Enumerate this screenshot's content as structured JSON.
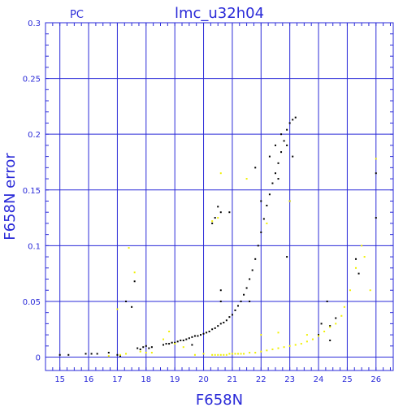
{
  "chart_data": {
    "type": "scatter",
    "title": "lmc_u32h04",
    "camera_label": "PC",
    "xlabel": "F658N",
    "ylabel": "F658N error",
    "xlim": [
      14.5,
      26.6
    ],
    "ylim": [
      -0.012,
      0.3
    ],
    "grid": true,
    "x_ticks": [
      15,
      16,
      17,
      18,
      19,
      20,
      21,
      22,
      23,
      24,
      25,
      26
    ],
    "y_ticks": [
      0,
      0.05,
      0.1,
      0.15,
      0.2,
      0.25,
      0.3
    ],
    "y_tick_labels": [
      "0",
      "0.05",
      "0.1",
      "0.15",
      "0.2",
      "0.25",
      "0.3"
    ],
    "colors": {
      "axis": "#2a2ad8",
      "grid": "#2a2ad8",
      "primary": "#000000",
      "secondary": "#f0f000"
    },
    "series": [
      {
        "color": "#000000",
        "points": [
          [
            15.0,
            0.002
          ],
          [
            15.3,
            0.002
          ],
          [
            15.9,
            0.003
          ],
          [
            16.1,
            0.003
          ],
          [
            16.3,
            0.003
          ],
          [
            16.7,
            0.004
          ],
          [
            17.0,
            0.002
          ],
          [
            17.1,
            0.001
          ],
          [
            17.3,
            0.05
          ],
          [
            17.5,
            0.045
          ],
          [
            17.6,
            0.068
          ],
          [
            17.7,
            0.008
          ],
          [
            17.8,
            0.007
          ],
          [
            17.9,
            0.009
          ],
          [
            18.0,
            0.01
          ],
          [
            18.1,
            0.008
          ],
          [
            18.2,
            0.009
          ],
          [
            18.6,
            0.011
          ],
          [
            18.7,
            0.012
          ],
          [
            18.8,
            0.012
          ],
          [
            18.9,
            0.013
          ],
          [
            19.0,
            0.013
          ],
          [
            19.1,
            0.014
          ],
          [
            19.2,
            0.015
          ],
          [
            19.3,
            0.015
          ],
          [
            19.4,
            0.016
          ],
          [
            19.5,
            0.017
          ],
          [
            19.6,
            0.018
          ],
          [
            19.7,
            0.019
          ],
          [
            19.8,
            0.019
          ],
          [
            19.9,
            0.02
          ],
          [
            20.0,
            0.021
          ],
          [
            20.1,
            0.022
          ],
          [
            20.2,
            0.023
          ],
          [
            20.3,
            0.025
          ],
          [
            20.4,
            0.026
          ],
          [
            20.5,
            0.028
          ],
          [
            20.6,
            0.03
          ],
          [
            20.7,
            0.031
          ],
          [
            20.8,
            0.033
          ],
          [
            20.9,
            0.036
          ],
          [
            21.0,
            0.038
          ],
          [
            21.1,
            0.042
          ],
          [
            21.2,
            0.046
          ],
          [
            21.3,
            0.05
          ],
          [
            21.4,
            0.056
          ],
          [
            21.5,
            0.062
          ],
          [
            21.6,
            0.07
          ],
          [
            21.7,
            0.078
          ],
          [
            21.8,
            0.088
          ],
          [
            21.9,
            0.1
          ],
          [
            22.0,
            0.112
          ],
          [
            22.1,
            0.124
          ],
          [
            22.2,
            0.136
          ],
          [
            22.3,
            0.146
          ],
          [
            22.4,
            0.156
          ],
          [
            22.5,
            0.165
          ],
          [
            22.6,
            0.174
          ],
          [
            22.7,
            0.184
          ],
          [
            22.8,
            0.194
          ],
          [
            22.9,
            0.204
          ],
          [
            23.0,
            0.21
          ],
          [
            23.1,
            0.213
          ],
          [
            23.2,
            0.215
          ],
          [
            20.4,
            0.125
          ],
          [
            20.5,
            0.135
          ],
          [
            20.6,
            0.13
          ],
          [
            20.3,
            0.12
          ],
          [
            20.6,
            0.05
          ],
          [
            20.9,
            0.13
          ],
          [
            21.8,
            0.17
          ],
          [
            22.0,
            0.14
          ],
          [
            22.3,
            0.18
          ],
          [
            22.5,
            0.19
          ],
          [
            22.6,
            0.16
          ],
          [
            22.7,
            0.2
          ],
          [
            23.0,
            0.14
          ],
          [
            22.9,
            0.09
          ],
          [
            23.1,
            0.18
          ],
          [
            22.9,
            0.19
          ],
          [
            24.3,
            0.05
          ],
          [
            24.4,
            0.028
          ],
          [
            24.6,
            0.035
          ],
          [
            25.3,
            0.088
          ],
          [
            25.4,
            0.075
          ],
          [
            26.0,
            0.165
          ],
          [
            26.0,
            0.125
          ],
          [
            24.0,
            0.02
          ],
          [
            24.1,
            0.03
          ],
          [
            24.4,
            0.015
          ],
          [
            20.6,
            0.06
          ],
          [
            21.6,
            0.05
          ],
          [
            19.6,
            0.011
          ]
        ]
      },
      {
        "color": "#f0f000",
        "points": [
          [
            16.7,
            0.001
          ],
          [
            17.0,
            0.043
          ],
          [
            17.1,
            0.002
          ],
          [
            17.3,
            0.003
          ],
          [
            17.4,
            0.098
          ],
          [
            17.6,
            0.076
          ],
          [
            17.8,
            0.005
          ],
          [
            18.0,
            0.004
          ],
          [
            18.2,
            0.004
          ],
          [
            18.6,
            0.016
          ],
          [
            18.8,
            0.023
          ],
          [
            19.0,
            0.012
          ],
          [
            19.3,
            0.009
          ],
          [
            19.7,
            0.002
          ],
          [
            20.0,
            0.003
          ],
          [
            20.3,
            0.122
          ],
          [
            20.5,
            0.125
          ],
          [
            20.6,
            0.165
          ],
          [
            20.3,
            0.002
          ],
          [
            20.4,
            0.002
          ],
          [
            20.5,
            0.002
          ],
          [
            20.6,
            0.002
          ],
          [
            20.7,
            0.002
          ],
          [
            20.8,
            0.002
          ],
          [
            20.9,
            0.003
          ],
          [
            21.0,
            0.003
          ],
          [
            21.1,
            0.003
          ],
          [
            21.2,
            0.003
          ],
          [
            21.3,
            0.003
          ],
          [
            21.4,
            0.003
          ],
          [
            21.6,
            0.004
          ],
          [
            21.8,
            0.004
          ],
          [
            22.0,
            0.005
          ],
          [
            22.2,
            0.006
          ],
          [
            22.4,
            0.007
          ],
          [
            22.6,
            0.008
          ],
          [
            22.8,
            0.009
          ],
          [
            23.0,
            0.01
          ],
          [
            23.2,
            0.011
          ],
          [
            23.4,
            0.012
          ],
          [
            23.6,
            0.014
          ],
          [
            23.8,
            0.016
          ],
          [
            24.0,
            0.019
          ],
          [
            24.2,
            0.023
          ],
          [
            24.4,
            0.027
          ],
          [
            24.6,
            0.03
          ],
          [
            24.8,
            0.037
          ],
          [
            24.9,
            0.045
          ],
          [
            25.1,
            0.06
          ],
          [
            25.3,
            0.08
          ],
          [
            25.5,
            0.1
          ],
          [
            25.6,
            0.09
          ],
          [
            26.0,
            0.178
          ],
          [
            21.5,
            0.16
          ],
          [
            22.2,
            0.12
          ],
          [
            23.0,
            0.14
          ],
          [
            25.8,
            0.06
          ],
          [
            22.0,
            0.02
          ],
          [
            22.6,
            0.022
          ],
          [
            23.6,
            0.02
          ]
        ]
      }
    ]
  }
}
